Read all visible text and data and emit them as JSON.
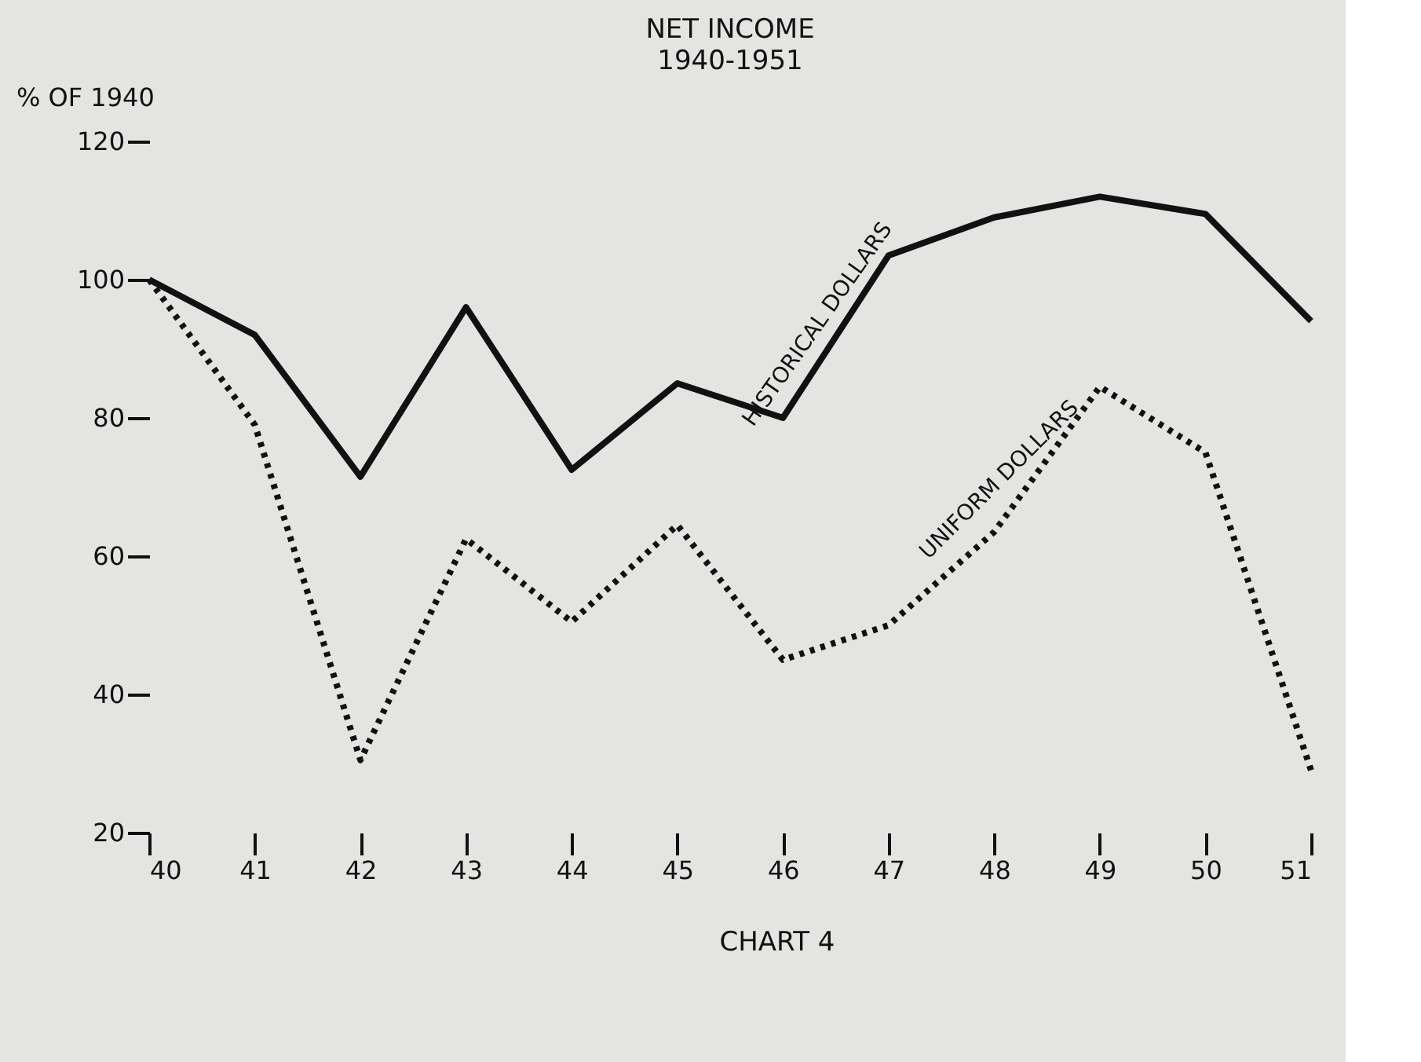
{
  "chart_data": {
    "type": "line",
    "title": "NET INCOME",
    "subtitle": "1940-1951",
    "ylabel": "% OF 1940",
    "annotations": [
      "CHART 4"
    ],
    "x": [
      40,
      41,
      42,
      43,
      44,
      45,
      46,
      47,
      48,
      49,
      50,
      51
    ],
    "series": [
      {
        "name": "HISTORICAL DOLLARS",
        "color": "#111111",
        "line_style": "solid",
        "values": [
          100,
          92,
          71.5,
          96,
          72.5,
          85,
          80,
          103.5,
          109,
          112,
          109.5,
          94
        ]
      },
      {
        "name": "UNIFORM DOLLARS",
        "color": "#111111",
        "line_style": "dotted",
        "values": [
          100,
          79,
          30.5,
          62.5,
          50.5,
          64.5,
          45,
          50,
          63.5,
          84.5,
          75,
          29
        ]
      }
    ],
    "xlim": [
      40,
      51
    ],
    "xticks": [
      40,
      41,
      42,
      43,
      44,
      45,
      46,
      47,
      48,
      49,
      50,
      51
    ],
    "ylim": [
      20,
      120
    ],
    "yticks": [
      20,
      40,
      60,
      80,
      100,
      120
    ],
    "grid": false,
    "marker": "none"
  }
}
